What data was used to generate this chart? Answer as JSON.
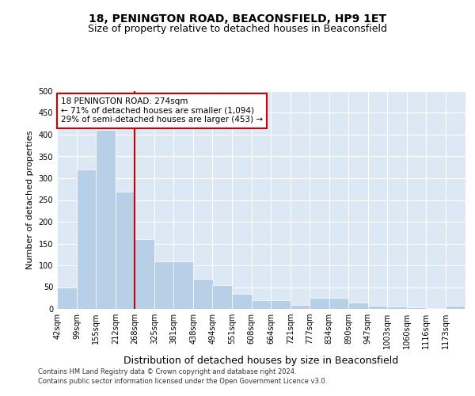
{
  "title": "18, PENINGTON ROAD, BEACONSFIELD, HP9 1ET",
  "subtitle": "Size of property relative to detached houses in Beaconsfield",
  "xlabel": "Distribution of detached houses by size in Beaconsfield",
  "ylabel": "Number of detached properties",
  "footer_line1": "Contains HM Land Registry data © Crown copyright and database right 2024.",
  "footer_line2": "Contains public sector information licensed under the Open Government Licence v3.0.",
  "bin_lefts": [
    42,
    99,
    155,
    212,
    268,
    325,
    381,
    438,
    494,
    551,
    608,
    664,
    721,
    777,
    834,
    890,
    947,
    1003,
    1060,
    1116,
    1173
  ],
  "bin_width": 57,
  "bin_labels": [
    "42sqm",
    "99sqm",
    "155sqm",
    "212sqm",
    "268sqm",
    "325sqm",
    "381sqm",
    "438sqm",
    "494sqm",
    "551sqm",
    "608sqm",
    "664sqm",
    "721sqm",
    "777sqm",
    "834sqm",
    "890sqm",
    "947sqm",
    "1003sqm",
    "1060sqm",
    "1116sqm",
    "1173sqm"
  ],
  "values": [
    50,
    320,
    410,
    270,
    160,
    110,
    110,
    70,
    55,
    35,
    20,
    20,
    10,
    25,
    25,
    15,
    8,
    5,
    3,
    1,
    7
  ],
  "bar_color": "#b8cfe8",
  "bar_edge_color": "white",
  "vline_x": 268,
  "vline_color": "#cc0000",
  "annotation_text": "18 PENINGTON ROAD: 274sqm\n← 71% of detached houses are smaller (1,094)\n29% of semi-detached houses are larger (453) →",
  "annotation_box_color": "white",
  "annotation_box_edge_color": "#cc0000",
  "ylim": [
    0,
    500
  ],
  "yticks": [
    0,
    50,
    100,
    150,
    200,
    250,
    300,
    350,
    400,
    450,
    500
  ],
  "plot_bg": "#dde8f5",
  "grid_color": "white",
  "title_fontsize": 10,
  "subtitle_fontsize": 9,
  "axis_label_fontsize": 8,
  "tick_fontsize": 7,
  "annotation_fontsize": 7.5
}
